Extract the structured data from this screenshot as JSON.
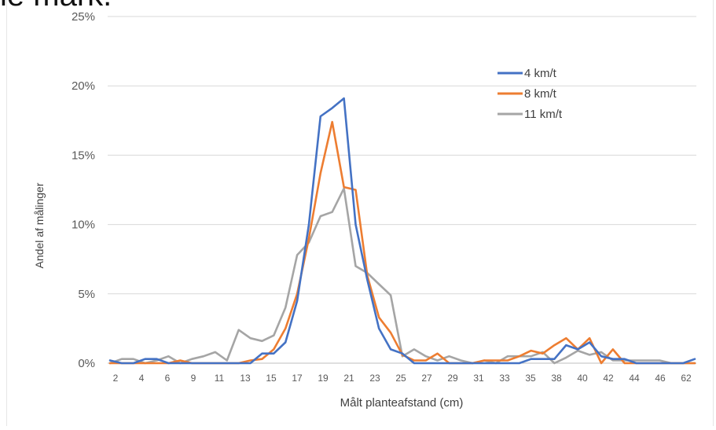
{
  "slide_fragment_text": "le mark.",
  "chart_data": {
    "type": "line",
    "title": "",
    "xlabel": "Målt planteafstand (cm)",
    "ylabel": "Andel af målinger",
    "ylim": [
      0,
      25
    ],
    "y_ticks": [
      "0%",
      "5%",
      "10%",
      "15%",
      "20%",
      "25%"
    ],
    "grid": "horizontal",
    "legend_position": "top-right",
    "x_tick_labels": [
      "2",
      "4",
      "6",
      "9",
      "11",
      "13",
      "15",
      "17",
      "19",
      "21",
      "23",
      "25",
      "27",
      "29",
      "31",
      "33",
      "35",
      "38",
      "40",
      "42",
      "44",
      "46",
      "62"
    ],
    "series": [
      {
        "name": "4 km/t",
        "color": "#4472C4",
        "values": [
          0.2,
          0,
          0,
          0.3,
          0.3,
          0,
          0,
          0,
          0,
          0,
          0,
          0,
          0,
          0.7,
          0.7,
          1.5,
          4.5,
          10,
          17.8,
          18.4,
          19.1,
          10,
          6,
          2.5,
          1,
          0.7,
          0,
          0,
          0,
          0,
          0,
          0,
          0,
          0,
          0,
          0,
          0.3,
          0.3,
          0.3,
          1.3,
          1,
          1.5,
          0.5,
          0.3,
          0.3,
          0,
          0,
          0,
          0,
          0,
          0.3
        ]
      },
      {
        "name": "8 km/t",
        "color": "#ED7D31",
        "values": [
          0,
          0,
          0,
          0,
          0,
          0,
          0.2,
          0,
          0,
          0,
          0,
          0,
          0.2,
          0.3,
          1,
          2.5,
          5,
          9,
          13.7,
          17.4,
          12.7,
          12.5,
          6.3,
          3.3,
          2.2,
          0.6,
          0.2,
          0.2,
          0.7,
          0,
          0,
          0,
          0.2,
          0.2,
          0.2,
          0.5,
          0.9,
          0.7,
          1.3,
          1.8,
          1,
          1.8,
          0,
          1,
          0,
          0,
          0,
          0,
          0,
          0,
          0
        ]
      },
      {
        "name": "11 km/t",
        "color": "#A5A5A5",
        "values": [
          0,
          0.3,
          0.3,
          0,
          0.2,
          0.5,
          0,
          0.3,
          0.5,
          0.8,
          0.2,
          2.4,
          1.8,
          1.6,
          2,
          4,
          7.8,
          8.7,
          10.6,
          10.9,
          12.6,
          7,
          6.5,
          5.7,
          4.9,
          0.5,
          1,
          0.5,
          0.2,
          0.5,
          0.2,
          0,
          0.2,
          0,
          0.5,
          0.5,
          0.5,
          0.8,
          0,
          0.4,
          0.9,
          0.6,
          0.8,
          0.2,
          0.2,
          0.2,
          0.2,
          0.2,
          0,
          0,
          0
        ]
      }
    ]
  }
}
